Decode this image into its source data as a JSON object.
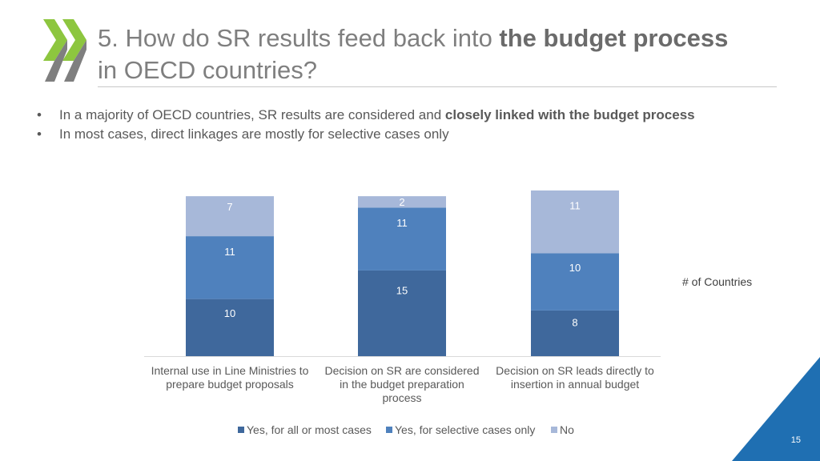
{
  "slide": {
    "title_part1": "5. How do SR results feed back into ",
    "title_bold": "the budget process",
    "title_part2": "in OECD countries?",
    "bullets": [
      {
        "text": "In a majority of OECD countries, SR results are considered and ",
        "bold": "closely linked with the budget process"
      },
      {
        "text": "In most cases, direct linkages are mostly for selective cases only",
        "bold": ""
      }
    ],
    "bullet_symbol": "•",
    "page_number": "15"
  },
  "colors": {
    "logo_green": "#8dc63f",
    "logo_gray": "#7f7f7f",
    "corner_blue": "#1f6fb2"
  },
  "chart_data": {
    "type": "bar",
    "stacked": true,
    "categories": [
      [
        "Internal use in Line Ministries to",
        "prepare budget proposals"
      ],
      [
        "Decision on SR are considered",
        "in the budget preparation",
        "process"
      ],
      [
        "Decision on SR leads directly to",
        "insertion in annual budget"
      ]
    ],
    "series": [
      {
        "name": "Yes, for all or most cases",
        "values": [
          10,
          15,
          8
        ],
        "color": "#3f689c"
      },
      {
        "name": "Yes, for selective cases only",
        "values": [
          11,
          11,
          10
        ],
        "color": "#4f81bd"
      },
      {
        "name": "No",
        "values": [
          7,
          2,
          11
        ],
        "color": "#a7b8d9"
      }
    ],
    "ylabel": "# of Countries",
    "ylim": [
      0,
      29
    ],
    "grid": false,
    "legend_position": "bottom"
  }
}
